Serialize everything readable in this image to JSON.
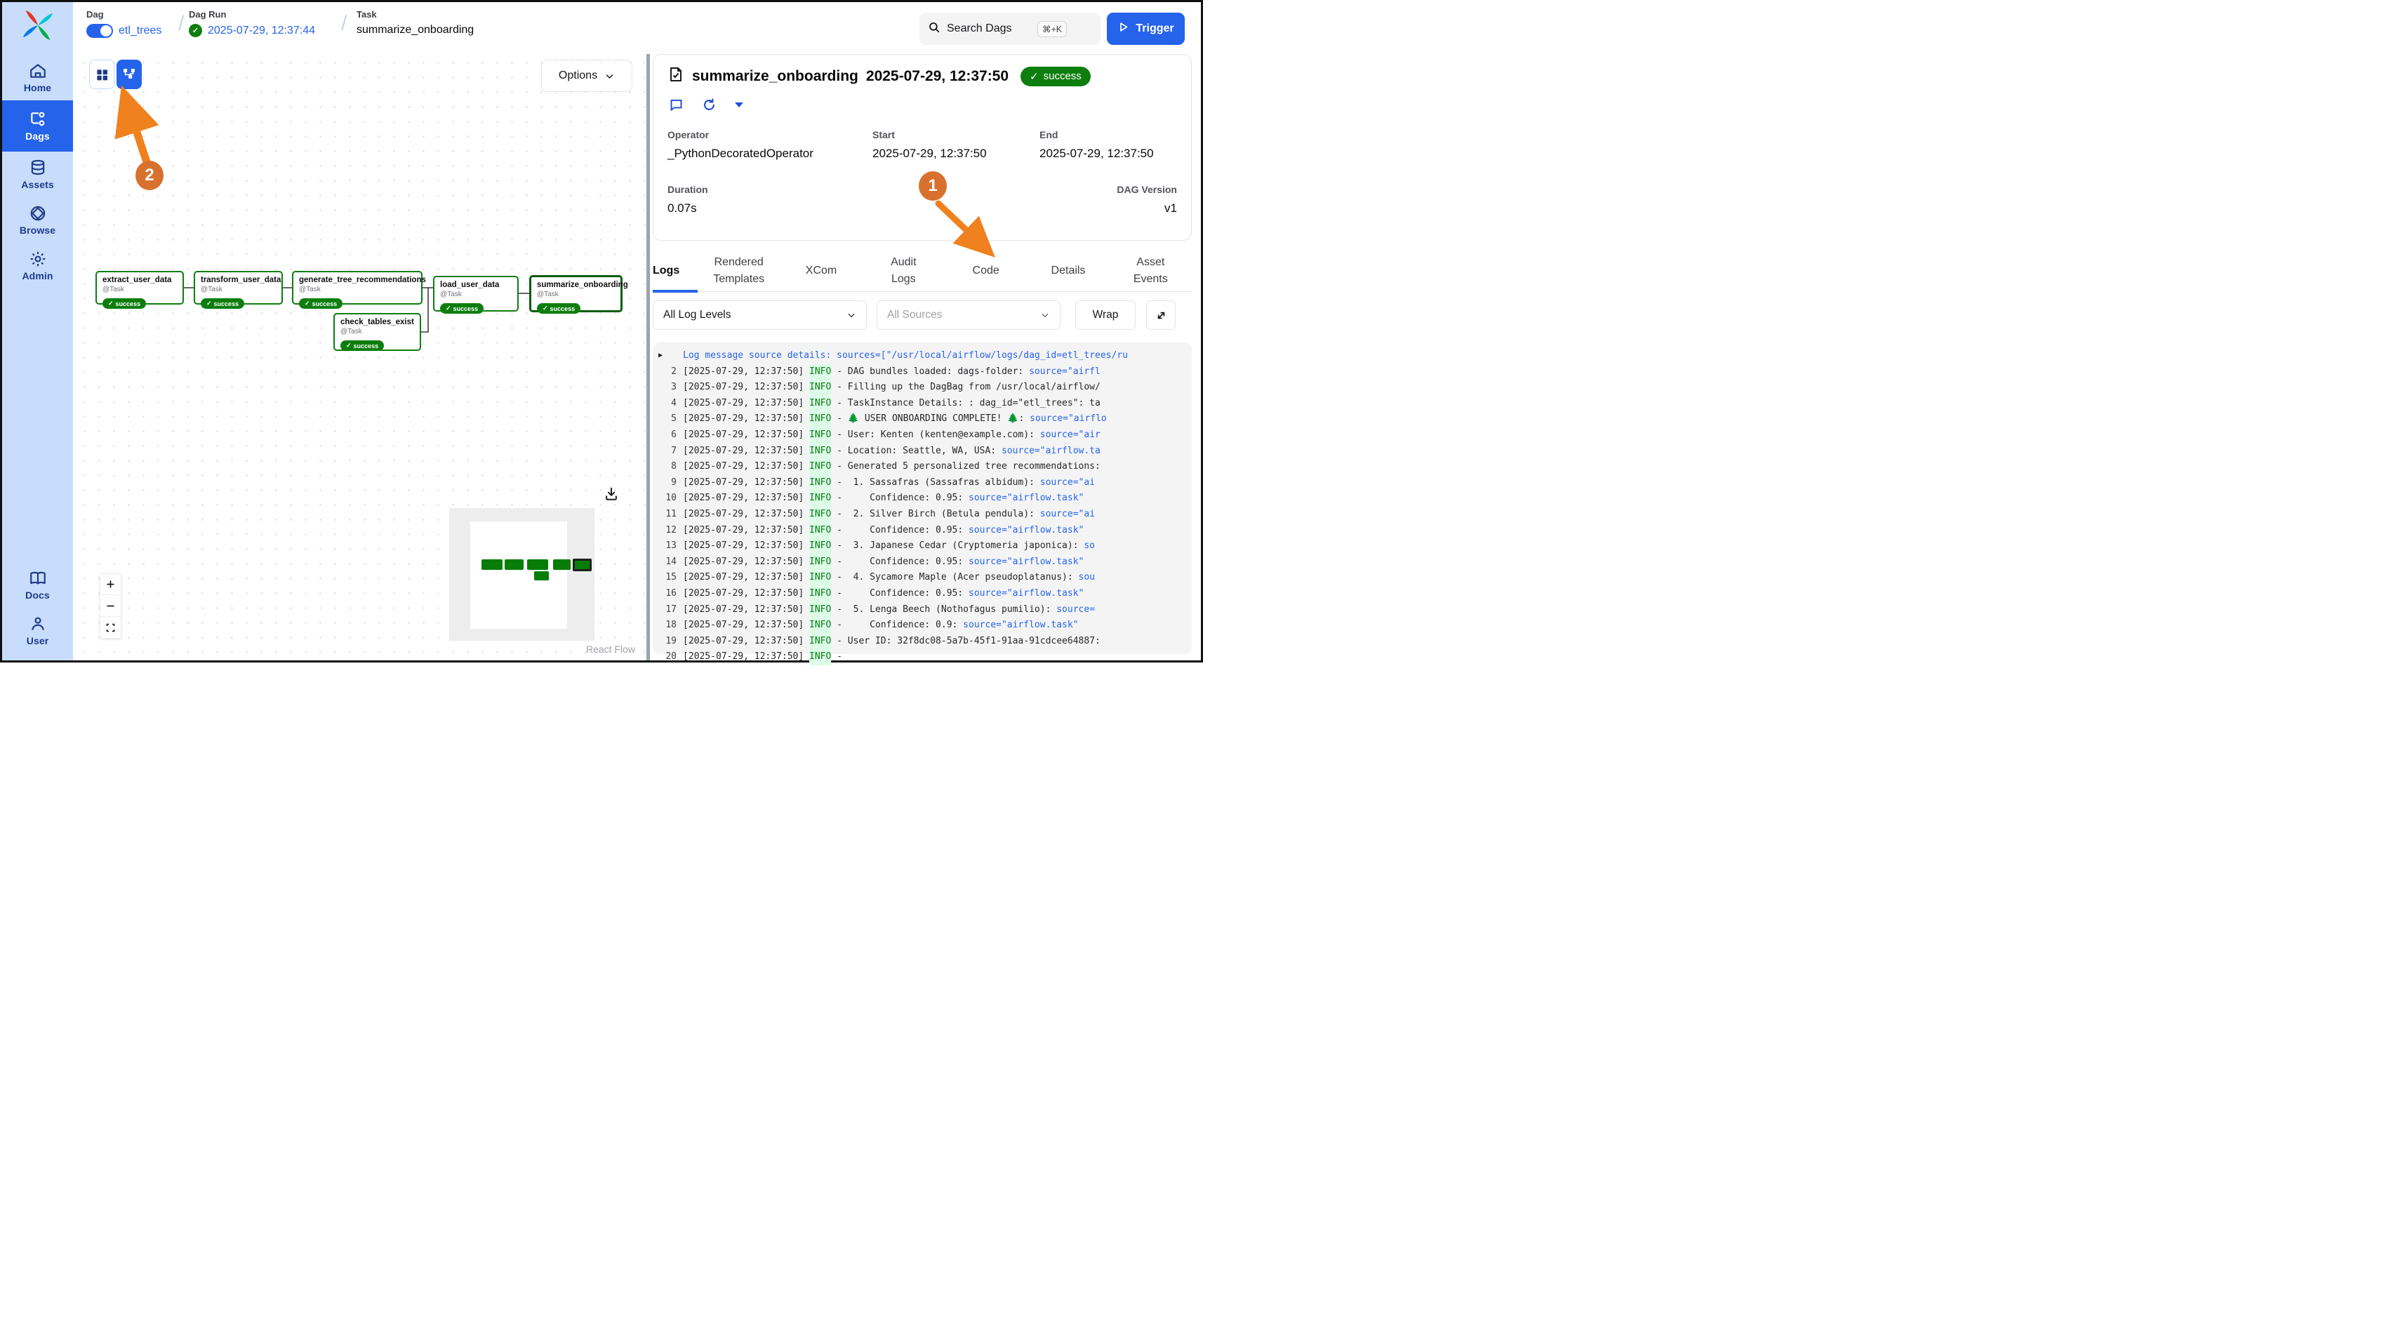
{
  "topbar": {
    "breadcrumb": {
      "dag_label": "Dag",
      "dag_value": "etl_trees",
      "run_label": "Dag Run",
      "run_value": "2025-07-29, 12:37:44",
      "task_label": "Task",
      "task_value": "summarize_onboarding"
    },
    "search": {
      "placeholder": "Search Dags",
      "shortcut": "⌘+K"
    },
    "trigger_label": "Trigger"
  },
  "sidebar": {
    "items": [
      {
        "label": "Home"
      },
      {
        "label": "Dags"
      },
      {
        "label": "Assets"
      },
      {
        "label": "Browse"
      },
      {
        "label": "Admin"
      },
      {
        "label": "Docs"
      },
      {
        "label": "User"
      }
    ]
  },
  "graph": {
    "options_label": "Options",
    "attribution": "React Flow",
    "nodes": [
      {
        "title": "extract_user_data",
        "type": "@Task",
        "status_label": "success"
      },
      {
        "title": "transform_user_data",
        "type": "@Task",
        "status_label": "success"
      },
      {
        "title": "generate_tree_recommendations",
        "type": "@Task",
        "status_label": "success"
      },
      {
        "title": "check_tables_exist",
        "type": "@Task",
        "status_label": "success"
      },
      {
        "title": "load_user_data",
        "type": "@Task",
        "status_label": "success"
      },
      {
        "title": "summarize_onboarding",
        "type": "@Task",
        "status_label": "success"
      }
    ]
  },
  "panel": {
    "title": "summarize_onboarding",
    "timestamp": "2025-07-29, 12:37:50",
    "status_label": "success",
    "meta": {
      "operator_label": "Operator",
      "operator_value": "_PythonDecoratedOperator",
      "start_label": "Start",
      "start_value": "2025-07-29, 12:37:50",
      "end_label": "End",
      "end_value": "2025-07-29, 12:37:50",
      "duration_label": "Duration",
      "duration_value": "0.07s",
      "version_label": "DAG Version",
      "version_value": "v1"
    },
    "tabs": [
      {
        "label": "Logs",
        "active": true
      },
      {
        "label": "Rendered Templates",
        "active": false
      },
      {
        "label": "XCom",
        "active": false
      },
      {
        "label": "Audit Logs",
        "active": false
      },
      {
        "label": "Code",
        "active": false
      },
      {
        "label": "Details",
        "active": false
      },
      {
        "label": "Asset Events",
        "active": false
      }
    ],
    "controls": {
      "levels": "All Log Levels",
      "sources": "All Sources",
      "wrap": "Wrap"
    }
  },
  "logs": {
    "lines": [
      {
        "caret": "▶",
        "parts": [
          [
            "l",
            "Log message source details: sources=[\"/usr/local/airflow/logs/dag_id=etl_trees/ru"
          ]
        ]
      },
      {
        "n": "2",
        "parts": [
          [
            "p",
            "[2025-07-29, 12:37:50] "
          ],
          [
            "i",
            "INFO"
          ],
          [
            "p",
            " - DAG bundles loaded: dags-folder: "
          ],
          [
            "l",
            "source=\"airfl"
          ]
        ]
      },
      {
        "n": "3",
        "parts": [
          [
            "p",
            "[2025-07-29, 12:37:50] "
          ],
          [
            "i",
            "INFO"
          ],
          [
            "p",
            " - Filling up the DagBag from /usr/local/airflow/"
          ]
        ]
      },
      {
        "n": "4",
        "parts": [
          [
            "p",
            "[2025-07-29, 12:37:50] "
          ],
          [
            "i",
            "INFO"
          ],
          [
            "p",
            " - TaskInstance Details: : dag_id=\"etl_trees\": ta"
          ]
        ]
      },
      {
        "n": "5",
        "parts": [
          [
            "p",
            "[2025-07-29, 12:37:50] "
          ],
          [
            "i",
            "INFO"
          ],
          [
            "p",
            " - "
          ],
          [
            "t",
            "🌲"
          ],
          [
            "p",
            " USER ONBOARDING COMPLETE! "
          ],
          [
            "t",
            "🌲"
          ],
          [
            "p",
            ": "
          ],
          [
            "l",
            "source=\"airflo"
          ]
        ]
      },
      {
        "n": "6",
        "parts": [
          [
            "p",
            "[2025-07-29, 12:37:50] "
          ],
          [
            "i",
            "INFO"
          ],
          [
            "p",
            " - User: Kenten (kenten@example.com): "
          ],
          [
            "l",
            "source=\"air"
          ]
        ]
      },
      {
        "n": "7",
        "parts": [
          [
            "p",
            "[2025-07-29, 12:37:50] "
          ],
          [
            "i",
            "INFO"
          ],
          [
            "p",
            " - Location: Seattle, WA, USA: "
          ],
          [
            "l",
            "source=\"airflow.ta"
          ]
        ]
      },
      {
        "n": "8",
        "parts": [
          [
            "p",
            "[2025-07-29, 12:37:50] "
          ],
          [
            "i",
            "INFO"
          ],
          [
            "p",
            " - Generated 5 personalized tree recommendations:"
          ]
        ]
      },
      {
        "n": "9",
        "parts": [
          [
            "p",
            "[2025-07-29, 12:37:50] "
          ],
          [
            "i",
            "INFO"
          ],
          [
            "p",
            " -  1. Sassafras (Sassafras albidum): "
          ],
          [
            "l",
            "source=\"ai"
          ]
        ]
      },
      {
        "n": "10",
        "parts": [
          [
            "p",
            "[2025-07-29, 12:37:50] "
          ],
          [
            "i",
            "INFO"
          ],
          [
            "p",
            " -     Confidence: 0.95: "
          ],
          [
            "l",
            "source=\"airflow.task\""
          ]
        ]
      },
      {
        "n": "11",
        "parts": [
          [
            "p",
            "[2025-07-29, 12:37:50] "
          ],
          [
            "i",
            "INFO"
          ],
          [
            "p",
            " -  2. Silver Birch (Betula pendula): "
          ],
          [
            "l",
            "source=\"ai"
          ]
        ]
      },
      {
        "n": "12",
        "parts": [
          [
            "p",
            "[2025-07-29, 12:37:50] "
          ],
          [
            "i",
            "INFO"
          ],
          [
            "p",
            " -     Confidence: 0.95: "
          ],
          [
            "l",
            "source=\"airflow.task\""
          ]
        ]
      },
      {
        "n": "13",
        "parts": [
          [
            "p",
            "[2025-07-29, 12:37:50] "
          ],
          [
            "i",
            "INFO"
          ],
          [
            "p",
            " -  3. Japanese Cedar (Cryptomeria japonica): "
          ],
          [
            "l",
            "so"
          ]
        ]
      },
      {
        "n": "14",
        "parts": [
          [
            "p",
            "[2025-07-29, 12:37:50] "
          ],
          [
            "i",
            "INFO"
          ],
          [
            "p",
            " -     Confidence: 0.95: "
          ],
          [
            "l",
            "source=\"airflow.task\""
          ]
        ]
      },
      {
        "n": "15",
        "parts": [
          [
            "p",
            "[2025-07-29, 12:37:50] "
          ],
          [
            "i",
            "INFO"
          ],
          [
            "p",
            " -  4. Sycamore Maple (Acer pseudoplatanus): "
          ],
          [
            "l",
            "sou"
          ]
        ]
      },
      {
        "n": "16",
        "parts": [
          [
            "p",
            "[2025-07-29, 12:37:50] "
          ],
          [
            "i",
            "INFO"
          ],
          [
            "p",
            " -     Confidence: 0.95: "
          ],
          [
            "l",
            "source=\"airflow.task\""
          ]
        ]
      },
      {
        "n": "17",
        "parts": [
          [
            "p",
            "[2025-07-29, 12:37:50] "
          ],
          [
            "i",
            "INFO"
          ],
          [
            "p",
            " -  5. Lenga Beech (Nothofagus pumilio): "
          ],
          [
            "l",
            "source="
          ]
        ]
      },
      {
        "n": "18",
        "parts": [
          [
            "p",
            "[2025-07-29, 12:37:50] "
          ],
          [
            "i",
            "INFO"
          ],
          [
            "p",
            " -     Confidence: 0.9: "
          ],
          [
            "l",
            "source=\"airflow.task\""
          ]
        ]
      },
      {
        "n": "19",
        "parts": [
          [
            "p",
            "[2025-07-29, 12:37:50] "
          ],
          [
            "i",
            "INFO"
          ],
          [
            "p",
            " - User ID: 32f8dc08-5a7b-45f1-91aa-91cdcee64887:"
          ]
        ]
      },
      {
        "n": "20",
        "parts": [
          [
            "p",
            "[2025-07-29, 12:37:50] "
          ],
          [
            "i",
            "INFO"
          ],
          [
            "p",
            " - "
          ]
        ]
      }
    ]
  },
  "annotations": {
    "step1": "1",
    "step2": "2"
  },
  "colors": {
    "accent": "#2563eb",
    "success": "#0d7e0e",
    "orange_circle": "#d9712e",
    "orange_arrow": "#f0811f",
    "link": "#2563eb",
    "sidebar_bg": "#c8ddfb"
  }
}
